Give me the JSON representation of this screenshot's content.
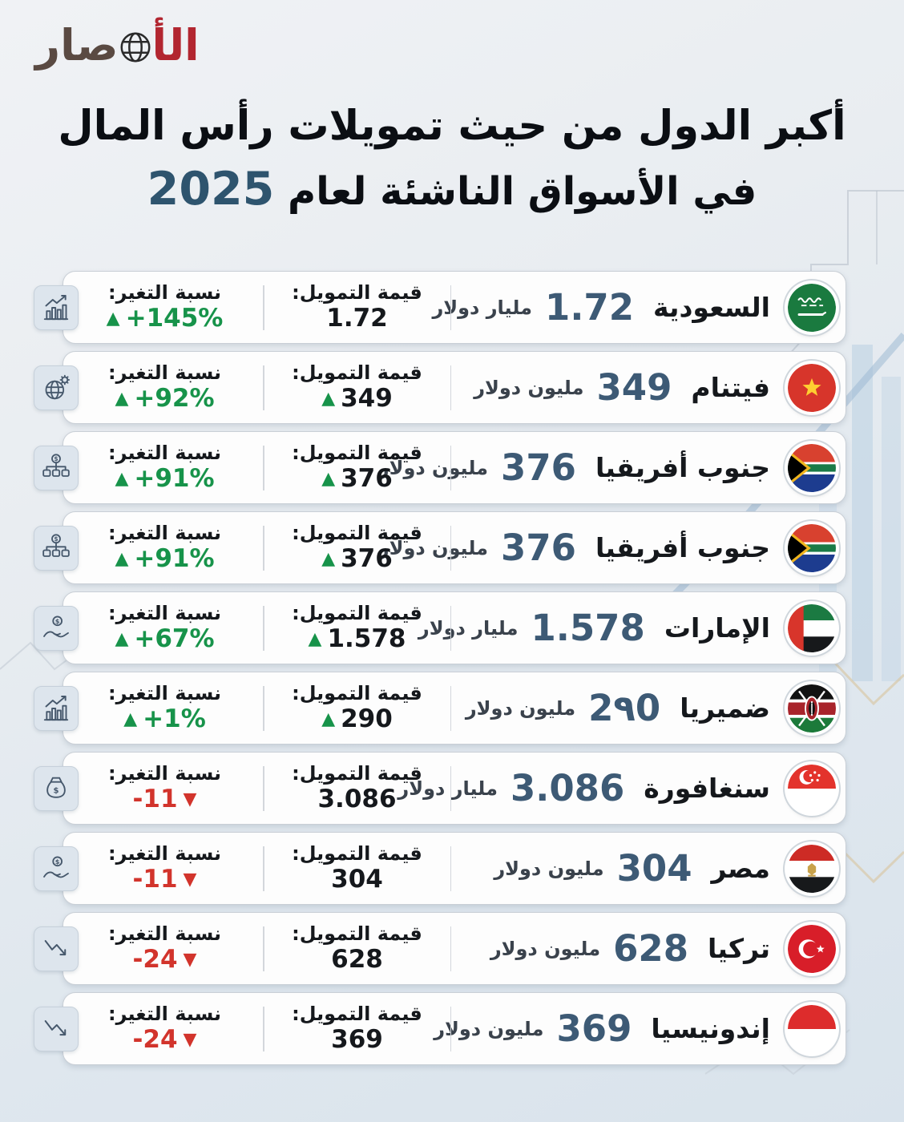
{
  "logo": {
    "part1": "الأ",
    "part2": "صار"
  },
  "title": {
    "line1": "أكبر الدول من حيث تمويلات رأس المال",
    "line2": "في الأسواق الناشئة لعام",
    "year": "2025"
  },
  "labels": {
    "funding": "قيمة التمويل:",
    "change": "نسبة التغير:"
  },
  "colors": {
    "green": "#17934a",
    "red": "#d2342c",
    "value_blue": "#3d5a75",
    "year_blue": "#2e546e",
    "logo_red": "#b22630",
    "logo_brown": "#5a4a42"
  },
  "rows": [
    {
      "country": "السعودية",
      "value": "1.72",
      "unit": "مليار دولار",
      "funding_value": "1.72",
      "funding_trend": "none",
      "change_value": "+145%",
      "change_trend": "up",
      "flag": "saudi-arabia",
      "flag_code": "sa",
      "icon": "bar-chart-up"
    },
    {
      "country": "فيتنام",
      "value": "349",
      "unit": "مليون دولار",
      "funding_value": "349",
      "funding_trend": "up",
      "change_value": "+92%",
      "change_trend": "up",
      "flag": "vietnam",
      "flag_code": "vn",
      "icon": "globe-gear"
    },
    {
      "country": "جنوب أفريقيا",
      "value": "376",
      "unit": "مليون دولار",
      "funding_value": "376",
      "funding_trend": "up",
      "change_value": "+91%",
      "change_trend": "up",
      "flag": "south-africa",
      "flag_code": "za",
      "icon": "money-distribution"
    },
    {
      "country": "جنوب أفريقيا",
      "value": "376",
      "unit": "مليون دولار",
      "funding_value": "376",
      "funding_trend": "up",
      "change_value": "+91%",
      "change_trend": "up",
      "flag": "south-africa",
      "flag_code": "za",
      "icon": "money-distribution"
    },
    {
      "country": "الإمارات",
      "value": "1.578",
      "unit": "مليار دولار",
      "funding_value": "1.578",
      "funding_trend": "up",
      "change_value": "+67%",
      "change_trend": "up",
      "flag": "united-arab-emirates",
      "flag_code": "ae",
      "icon": "hand-coin"
    },
    {
      "country": "ضميريا",
      "value": "2٩0",
      "unit": "مليون دولار",
      "funding_value": "290",
      "funding_trend": "up",
      "change_value": "+1%",
      "change_trend": "up",
      "flag": "kenya",
      "flag_code": "ke",
      "icon": "bar-chart-up"
    },
    {
      "country": "سنغافورة",
      "value": "3.086",
      "unit": "مليار دولار",
      "funding_value": "3.086",
      "funding_trend": "none",
      "change_value": "-11",
      "change_trend": "down",
      "flag": "singapore",
      "flag_code": "sg",
      "icon": "money-bag"
    },
    {
      "country": "مصر",
      "value": "304",
      "unit": "مليون دولار",
      "funding_value": "304",
      "funding_trend": "none",
      "change_value": "-11",
      "change_trend": "down",
      "flag": "egypt",
      "flag_code": "eg",
      "icon": "hand-coin"
    },
    {
      "country": "تركيا",
      "value": "628",
      "unit": "مليون دولار",
      "funding_value": "628",
      "funding_trend": "none",
      "change_value": "-24",
      "change_trend": "down",
      "flag": "turkey",
      "flag_code": "tr",
      "icon": "trend-down"
    },
    {
      "country": "إندونيسيا",
      "value": "369",
      "unit": "مليون دولار",
      "funding_value": "369",
      "funding_trend": "none",
      "change_value": "-24",
      "change_trend": "down",
      "flag": "indonesia",
      "flag_code": "id",
      "icon": "trend-down"
    }
  ],
  "chart_data": {
    "type": "table",
    "title": "أكبر الدول من حيث تمويلات رأس المال في الأسواق الناشئة لعام 2025",
    "categories": [
      "السعودية",
      "فيتنام",
      "جنوب أفريقيا",
      "جنوب أفريقيا",
      "الإمارات",
      "ضميريا",
      "سنغافورة",
      "مصر",
      "تركيا",
      "إندونيسيا"
    ],
    "series": [
      {
        "name": "قيمة التمويل (مليون دولار)",
        "values": [
          1720,
          349,
          376,
          376,
          1578,
          290,
          3086,
          304,
          628,
          369
        ]
      },
      {
        "name": "نسبة التغير %",
        "values": [
          145,
          92,
          91,
          91,
          67,
          1,
          -11,
          -11,
          -24,
          -24
        ]
      }
    ],
    "legend_position": "none",
    "grid": false
  }
}
